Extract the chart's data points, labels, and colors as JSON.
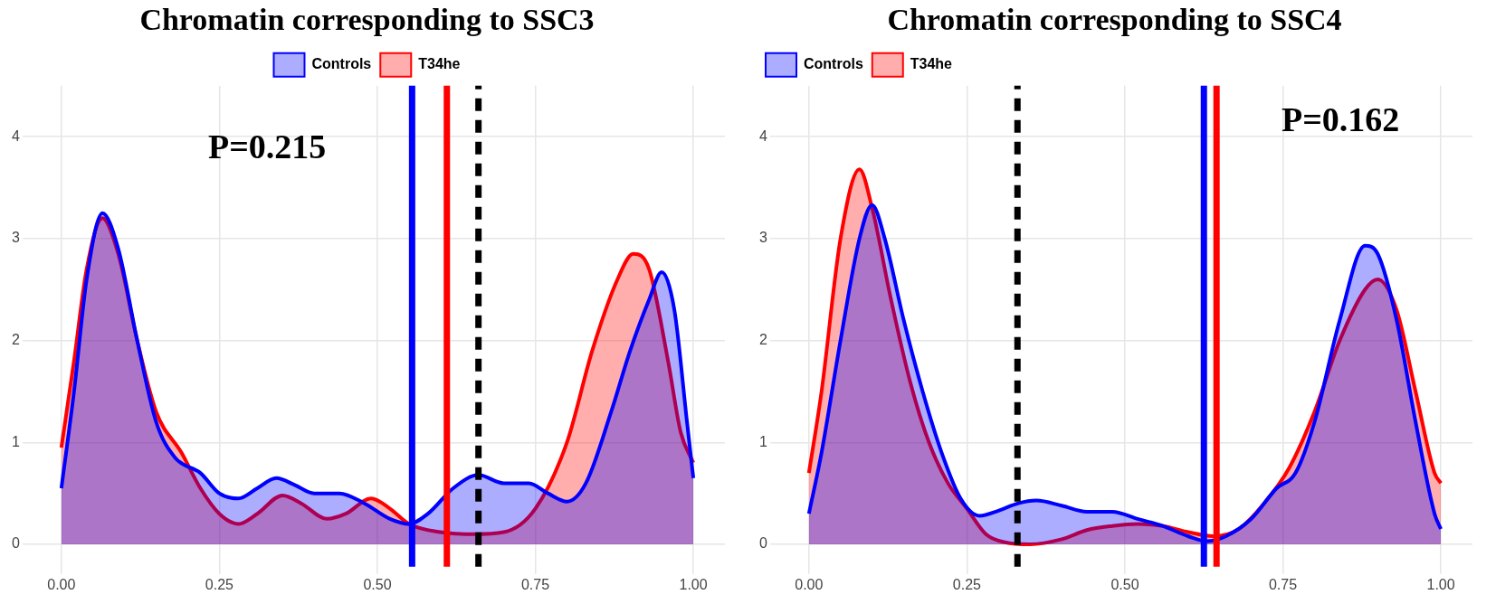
{
  "chart_data": [
    {
      "type": "area",
      "title": "Chromatin corresponding to SSC3",
      "legend": "top right",
      "grid": true,
      "marker": "none",
      "xlim": [
        -0.05,
        1.05
      ],
      "xticks": [
        {
          "value": 0,
          "label": "0.00"
        },
        {
          "value": 0.25,
          "label": "0.25"
        },
        {
          "value": 0.5,
          "label": "0.50"
        },
        {
          "value": 0.75,
          "label": "0.75"
        },
        {
          "value": 1,
          "label": "1.00"
        }
      ],
      "ylim": [
        -0.22,
        4.5
      ],
      "yticks": [
        0,
        1,
        2,
        3,
        4
      ],
      "series": [
        {
          "name": "Controls",
          "color": "#0000ff",
          "x": [
            0,
            0.02,
            0.04,
            0.065,
            0.09,
            0.12,
            0.15,
            0.18,
            0.22,
            0.25,
            0.28,
            0.31,
            0.34,
            0.37,
            0.4,
            0.44,
            0.48,
            0.52,
            0.55,
            0.58,
            0.62,
            0.66,
            0.7,
            0.74,
            0.77,
            0.8,
            0.83,
            0.87,
            0.9,
            0.93,
            0.95,
            0.97,
            0.99,
            1
          ],
          "values": [
            0.55,
            1.5,
            2.6,
            3.25,
            2.9,
            2,
            1.2,
            0.85,
            0.7,
            0.5,
            0.45,
            0.55,
            0.65,
            0.58,
            0.5,
            0.5,
            0.4,
            0.25,
            0.2,
            0.3,
            0.55,
            0.68,
            0.6,
            0.6,
            0.5,
            0.42,
            0.6,
            1.3,
            1.9,
            2.4,
            2.67,
            2.3,
            1.2,
            0.65
          ]
        },
        {
          "name": "T34he",
          "color": "#ff0000",
          "x": [
            0,
            0.02,
            0.04,
            0.065,
            0.09,
            0.12,
            0.15,
            0.19,
            0.22,
            0.25,
            0.28,
            0.31,
            0.35,
            0.38,
            0.42,
            0.45,
            0.49,
            0.52,
            0.55,
            0.6,
            0.65,
            0.7,
            0.75,
            0.8,
            0.84,
            0.88,
            0.905,
            0.93,
            0.96,
            0.98,
            1
          ],
          "values": [
            0.95,
            1.8,
            2.7,
            3.2,
            2.85,
            2,
            1.3,
            0.9,
            0.55,
            0.3,
            0.2,
            0.3,
            0.48,
            0.4,
            0.25,
            0.3,
            0.45,
            0.35,
            0.2,
            0.12,
            0.1,
            0.12,
            0.35,
            1,
            1.9,
            2.6,
            2.85,
            2.7,
            1.8,
            1.1,
            0.8
          ]
        }
      ],
      "ref_lines": [
        {
          "axis": "x",
          "value": 0.555,
          "color": "#0000ff",
          "line_style": "solid"
        },
        {
          "axis": "x",
          "value": 0.61,
          "color": "#ff0000",
          "line_style": "solid"
        },
        {
          "axis": "x",
          "value": 0.66,
          "color": "#000000",
          "line_style": "dashed"
        }
      ],
      "annotations": [
        "P=0.215"
      ]
    },
    {
      "type": "area",
      "title": "Chromatin corresponding to SSC4",
      "legend": "top left",
      "grid": true,
      "marker": "none",
      "xlim": [
        -0.05,
        1.05
      ],
      "xticks": [
        {
          "value": 0,
          "label": "0.00"
        },
        {
          "value": 0.25,
          "label": "0.25"
        },
        {
          "value": 0.5,
          "label": "0.50"
        },
        {
          "value": 0.75,
          "label": "0.75"
        },
        {
          "value": 1,
          "label": "1.00"
        }
      ],
      "ylim": [
        -0.22,
        4.5
      ],
      "yticks": [
        0,
        1,
        2,
        3,
        4
      ],
      "series": [
        {
          "name": "Controls",
          "color": "#0000ff",
          "x": [
            0,
            0.02,
            0.05,
            0.08,
            0.1,
            0.12,
            0.15,
            0.18,
            0.21,
            0.24,
            0.27,
            0.3,
            0.33,
            0.36,
            0.4,
            0.44,
            0.48,
            0.52,
            0.56,
            0.6,
            0.63,
            0.66,
            0.7,
            0.74,
            0.77,
            0.8,
            0.84,
            0.88,
            0.9,
            0.93,
            0.96,
            0.99,
            1
          ],
          "values": [
            0.3,
            0.9,
            2,
            3,
            3.33,
            3,
            2.2,
            1.5,
            0.9,
            0.45,
            0.28,
            0.33,
            0.4,
            0.43,
            0.38,
            0.32,
            0.32,
            0.25,
            0.18,
            0.08,
            0.03,
            0.08,
            0.25,
            0.55,
            0.7,
            1.2,
            2.2,
            2.93,
            2.85,
            2.2,
            1.2,
            0.3,
            0.15
          ]
        },
        {
          "name": "T34he",
          "color": "#ff0000",
          "x": [
            0,
            0.02,
            0.05,
            0.08,
            0.1,
            0.13,
            0.16,
            0.19,
            0.22,
            0.25,
            0.28,
            0.31,
            0.35,
            0.4,
            0.44,
            0.48,
            0.52,
            0.56,
            0.6,
            0.64,
            0.68,
            0.72,
            0.76,
            0.8,
            0.84,
            0.88,
            0.9,
            0.93,
            0.96,
            0.99,
            1
          ],
          "values": [
            0.7,
            1.5,
            3,
            3.68,
            3.3,
            2.4,
            1.6,
            1,
            0.6,
            0.35,
            0.1,
            0.02,
            0,
            0.05,
            0.14,
            0.18,
            0.2,
            0.18,
            0.12,
            0.08,
            0.15,
            0.4,
            0.75,
            1.3,
            2,
            2.5,
            2.6,
            2.3,
            1.5,
            0.7,
            0.6
          ]
        }
      ],
      "ref_lines": [
        {
          "axis": "x",
          "value": 0.625,
          "color": "#0000ff",
          "line_style": "solid"
        },
        {
          "axis": "x",
          "value": 0.645,
          "color": "#ff0000",
          "line_style": "solid"
        },
        {
          "axis": "x",
          "value": 0.33,
          "color": "#000000",
          "line_style": "dashed"
        }
      ],
      "annotations": [
        "P=0.162"
      ]
    }
  ]
}
